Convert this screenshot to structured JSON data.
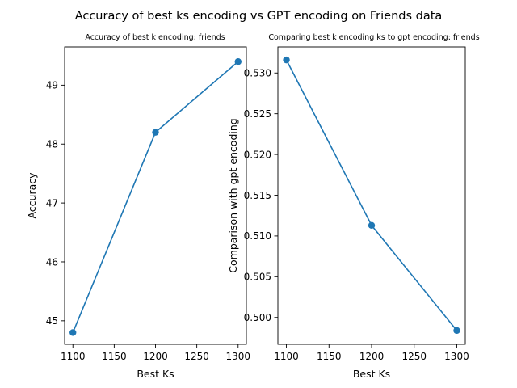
{
  "figure": {
    "suptitle": "Accuracy of best ks encoding vs GPT encoding on Friends data",
    "line_color": "#1f77b4"
  },
  "chart_data": [
    {
      "type": "line",
      "title": "Accuracy of best k encoding: friends",
      "xlabel": "Best Ks",
      "ylabel": "Accuracy",
      "x": [
        1100,
        1200,
        1300
      ],
      "y": [
        44.8,
        48.2,
        49.4
      ],
      "xlim": [
        1090,
        1310
      ],
      "ylim": [
        44.6,
        49.65
      ],
      "xticks": [
        1100,
        1150,
        1200,
        1250,
        1300
      ],
      "yticks": [
        45,
        46,
        47,
        48,
        49
      ],
      "ytick_labels": [
        "45",
        "46",
        "47",
        "48",
        "49"
      ],
      "marker": "circle",
      "grid": false,
      "color": "#1f77b4"
    },
    {
      "type": "line",
      "title": "Comparing best k encoding ks to gpt encoding: friends",
      "xlabel": "Best Ks",
      "ylabel": "Comparison with gpt encoding",
      "x": [
        1100,
        1200,
        1300
      ],
      "y": [
        0.5316,
        0.5113,
        0.4984
      ],
      "xlim": [
        1090,
        1310
      ],
      "ylim": [
        0.4967,
        0.5332
      ],
      "xticks": [
        1100,
        1150,
        1200,
        1250,
        1300
      ],
      "yticks": [
        0.5,
        0.505,
        0.51,
        0.515,
        0.52,
        0.525,
        0.53
      ],
      "ytick_labels": [
        "0.500",
        "0.505",
        "0.510",
        "0.515",
        "0.520",
        "0.525",
        "0.530"
      ],
      "marker": "circle",
      "grid": false,
      "color": "#1f77b4"
    }
  ]
}
